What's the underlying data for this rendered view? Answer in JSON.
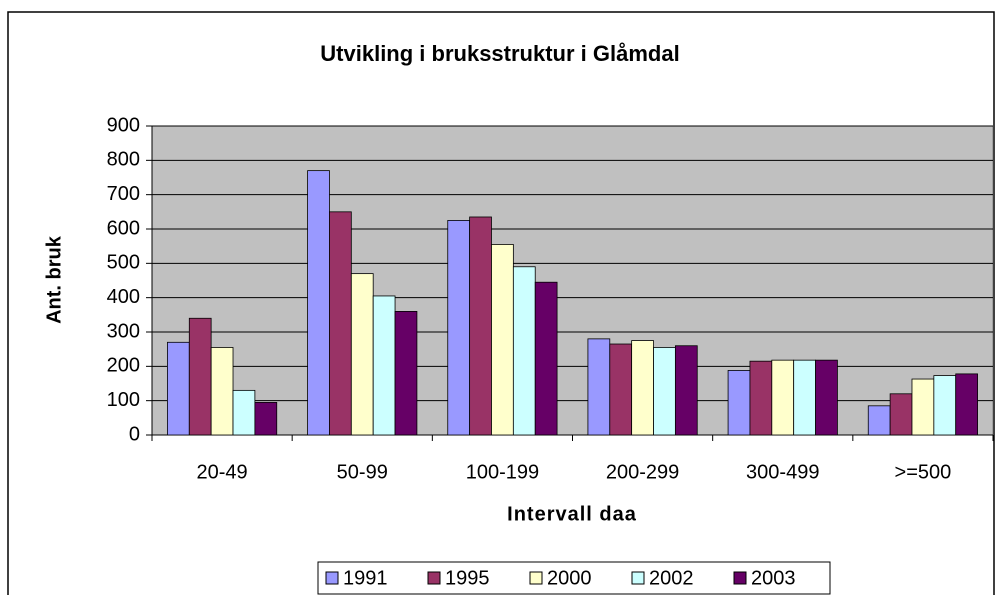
{
  "chart_data": {
    "type": "bar",
    "title": "Utvikling i bruksstruktur i Glåmdal",
    "x_label": "Intervall daa",
    "y_label": "Ant. bruk",
    "categories": [
      "20-49",
      "50-99",
      "100-199",
      "200-299",
      "300-499",
      ">=500"
    ],
    "series": [
      {
        "name": "1991",
        "color": "#9999ff",
        "values": [
          270,
          770,
          625,
          280,
          188,
          85
        ]
      },
      {
        "name": "1995",
        "color": "#993366",
        "values": [
          340,
          650,
          635,
          265,
          215,
          120
        ]
      },
      {
        "name": "2000",
        "color": "#ffffcc",
        "values": [
          255,
          470,
          555,
          275,
          218,
          163
        ]
      },
      {
        "name": "2002",
        "color": "#ccffff",
        "values": [
          130,
          405,
          490,
          255,
          218,
          173
        ]
      },
      {
        "name": "2003",
        "color": "#660066",
        "values": [
          95,
          360,
          445,
          260,
          218,
          178
        ]
      }
    ],
    "ylim": [
      0,
      900
    ],
    "yticks": [
      0,
      100,
      200,
      300,
      400,
      500,
      600,
      700,
      800,
      900
    ],
    "grid": true,
    "legend": "bottom"
  }
}
